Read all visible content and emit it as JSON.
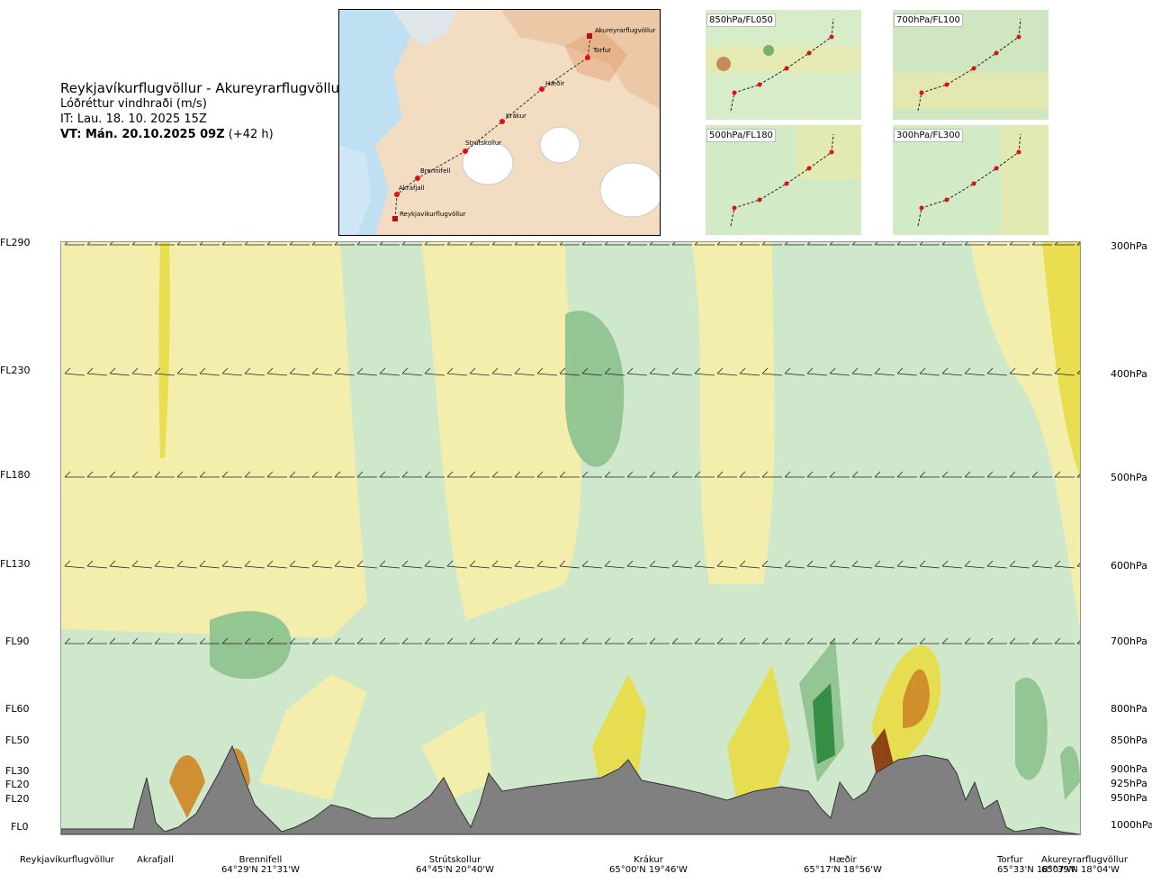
{
  "header": {
    "route": "Reykjavíkurflugvöllur - Akureyrarflugvöllur",
    "variable": "Lóðréttur vindhraði (m/s)",
    "init_time": "IT: Lau. 18. 10. 2025 15Z",
    "valid_label": "VT: Mán. 20.10.2025 09Z",
    "valid_offset": "(+42 h)"
  },
  "map": {
    "points": [
      "Akureyrarflugvöllur",
      "Torfur",
      "Hæðir",
      "Krákur",
      "Strútskollur",
      "Brennifell",
      "Akrafjall",
      "Reykjavíkurflugvöllur"
    ]
  },
  "mini_maps": [
    {
      "label": "850hPa/FL050"
    },
    {
      "label": "700hPa/FL100"
    },
    {
      "label": "500hPa/FL180"
    },
    {
      "label": "300hPa/FL300"
    }
  ],
  "left_levels": [
    "FL290",
    "FL230",
    "FL180",
    "FL130",
    "FL90",
    "FL60",
    "FL50",
    "FL30",
    "FL20",
    "FL20",
    "FL0"
  ],
  "right_levels": [
    "300hPa",
    "400hPa",
    "500hPa",
    "600hPa",
    "700hPa",
    "800hPa",
    "850hPa",
    "900hPa",
    "925hPa",
    "950hPa",
    "1000hPa"
  ],
  "waypoints": [
    {
      "name": "Reykjavíkurflugvöllur",
      "coord": ""
    },
    {
      "name": "Akrafjall",
      "coord": ""
    },
    {
      "name": "Brennifell",
      "coord": "64°29'N 21°31'W"
    },
    {
      "name": "Strútskollur",
      "coord": "64°45'N 20°40'W"
    },
    {
      "name": "Krákur",
      "coord": "65°00'N 19°46'W"
    },
    {
      "name": "Hæðir",
      "coord": "65°17'N 18°56'W"
    },
    {
      "name": "Torfur",
      "coord": "65°33'N 18°07'W"
    },
    {
      "name": "Akureyrarflugvöllur",
      "coord": "65°39'N 18°04'W"
    }
  ],
  "chart_data": {
    "type": "heatmap",
    "title": "Lóðréttur vindhraði (m/s)",
    "x_categories": [
      "Reykjavíkurflugvöllur",
      "Akrafjall",
      "Brennifell",
      "Strútskollur",
      "Krákur",
      "Hæðir",
      "Torfur",
      "Akureyrarflugvöllur"
    ],
    "y_levels_hPa": [
      300,
      400,
      500,
      600,
      700,
      800,
      850,
      900,
      925,
      950,
      1000
    ],
    "y_levels_FL": [
      "FL290",
      "FL230",
      "FL180",
      "FL130",
      "FL90",
      "FL60",
      "FL50",
      "FL30",
      "FL20",
      "FL20",
      "FL0"
    ],
    "colors": {
      "strong_down": "#2e8b3e",
      "down": "#8fc490",
      "weak_down": "#cfe8cc",
      "neutral": "#f6fbe8",
      "weak_up": "#f4eeaa",
      "up": "#e8dc4a",
      "strong_up": "#d08a2a",
      "extreme_up": "#8a3c10",
      "terrain": "#808080"
    }
  }
}
